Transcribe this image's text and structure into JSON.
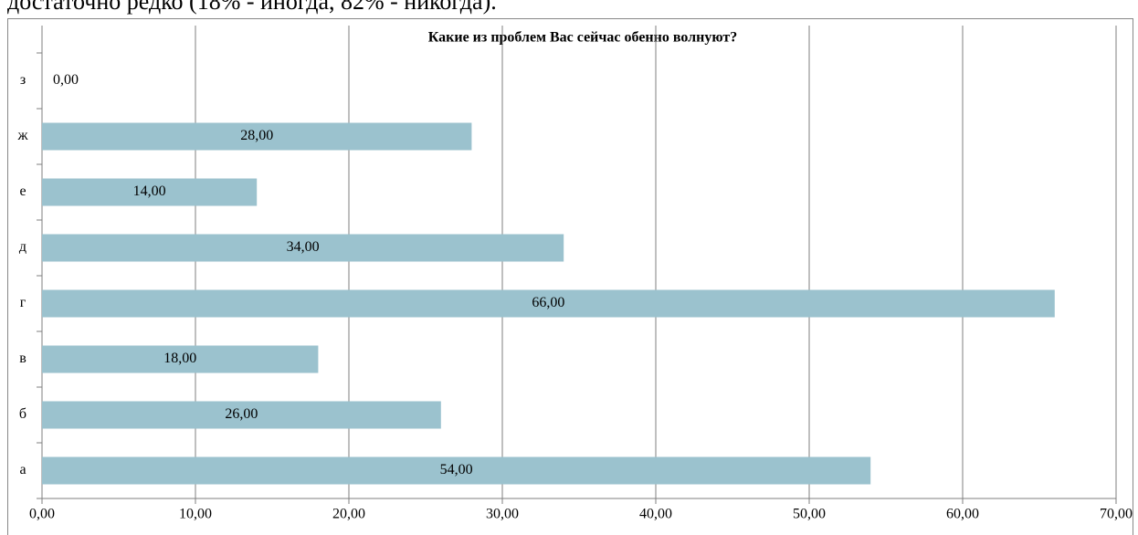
{
  "caption": "достаточно редко (18% - иногда, 82% - никогда).",
  "chart_data": {
    "type": "bar",
    "orientation": "horizontal",
    "title": "Какие из проблем Вас сейчас обенно волнуют?",
    "categories": [
      "а",
      "б",
      "в",
      "г",
      "д",
      "е",
      "ж",
      "з"
    ],
    "values": [
      54,
      26,
      18,
      66,
      34,
      14,
      28,
      0
    ],
    "value_labels": [
      "54,00",
      "26,00",
      "18,00",
      "66,00",
      "34,00",
      "14,00",
      "28,00",
      "0,00"
    ],
    "color": "#9bc2ce",
    "xlim": [
      0,
      70
    ],
    "xticks": [
      {
        "value": 0,
        "label": "0,00"
      },
      {
        "value": 10,
        "label": "10,00"
      },
      {
        "value": 20,
        "label": "20,00"
      },
      {
        "value": 30,
        "label": "30,00"
      },
      {
        "value": 40,
        "label": "40,00"
      },
      {
        "value": 50,
        "label": "50,00"
      },
      {
        "value": 60,
        "label": "60,00"
      },
      {
        "value": 70,
        "label": "70,00"
      }
    ],
    "grid": true
  }
}
